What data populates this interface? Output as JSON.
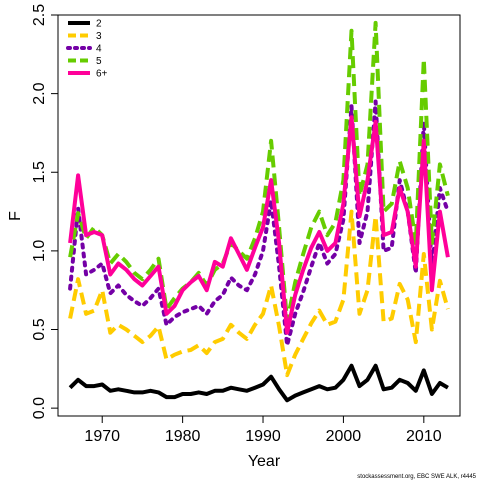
{
  "chart_data": {
    "type": "line",
    "xlabel": "Year",
    "ylabel": "F",
    "xlim": [
      1964.5,
      2014.5
    ],
    "ylim": [
      -0.05,
      2.5
    ],
    "xticks": [
      1970,
      1980,
      1990,
      2000,
      2010
    ],
    "yticks": [
      0.0,
      0.5,
      1.0,
      1.5,
      2.0,
      2.5
    ],
    "ytick_labels": [
      "0.0",
      "0.5",
      "1.0",
      "1.5",
      "2.0",
      "2.5"
    ],
    "grid": false,
    "legend_position": "top-left",
    "credit": "stockassessment.org, EBC SWE ALK, r4445",
    "x": [
      1966,
      1967,
      1968,
      1969,
      1970,
      1971,
      1972,
      1973,
      1974,
      1975,
      1976,
      1977,
      1978,
      1979,
      1980,
      1981,
      1982,
      1983,
      1984,
      1985,
      1986,
      1987,
      1988,
      1989,
      1990,
      1991,
      1992,
      1993,
      1994,
      1995,
      1996,
      1997,
      1998,
      1999,
      2000,
      2001,
      2002,
      2003,
      2004,
      2005,
      2006,
      2007,
      2008,
      2009,
      2010,
      2011,
      2012,
      2013
    ],
    "series": [
      {
        "name": "2",
        "color": "#000000",
        "style": "solid",
        "values": [
          0.13,
          0.18,
          0.14,
          0.14,
          0.15,
          0.11,
          0.12,
          0.11,
          0.1,
          0.1,
          0.11,
          0.1,
          0.07,
          0.07,
          0.09,
          0.09,
          0.1,
          0.09,
          0.11,
          0.11,
          0.13,
          0.12,
          0.11,
          0.13,
          0.15,
          0.2,
          0.12,
          0.05,
          0.08,
          0.1,
          0.12,
          0.14,
          0.12,
          0.13,
          0.18,
          0.27,
          0.14,
          0.18,
          0.27,
          0.12,
          0.13,
          0.18,
          0.16,
          0.11,
          0.24,
          0.09,
          0.16,
          0.13
        ]
      },
      {
        "name": "3",
        "color": "#FFCC00",
        "style": "dashed",
        "values": [
          0.57,
          0.82,
          0.6,
          0.62,
          0.75,
          0.48,
          0.53,
          0.5,
          0.46,
          0.42,
          0.46,
          0.52,
          0.31,
          0.34,
          0.36,
          0.37,
          0.4,
          0.35,
          0.42,
          0.44,
          0.53,
          0.48,
          0.44,
          0.53,
          0.6,
          0.78,
          0.52,
          0.21,
          0.34,
          0.44,
          0.54,
          0.62,
          0.53,
          0.55,
          0.69,
          1.25,
          0.6,
          0.75,
          1.22,
          0.55,
          0.57,
          0.79,
          0.69,
          0.42,
          0.98,
          0.5,
          0.81,
          0.63
        ]
      },
      {
        "name": "4",
        "color": "#7400A6",
        "style": "dotted",
        "values": [
          0.76,
          1.27,
          0.85,
          0.88,
          0.92,
          0.73,
          0.78,
          0.72,
          0.68,
          0.65,
          0.7,
          0.76,
          0.53,
          0.58,
          0.61,
          0.63,
          0.65,
          0.6,
          0.68,
          0.72,
          0.83,
          0.78,
          0.75,
          0.85,
          1.0,
          1.32,
          0.9,
          0.4,
          0.6,
          0.74,
          0.9,
          1.05,
          0.92,
          0.98,
          1.2,
          1.92,
          1.05,
          1.25,
          1.95,
          1.0,
          1.02,
          1.45,
          1.25,
          0.86,
          1.82,
          0.88,
          1.4,
          1.25
        ]
      },
      {
        "name": "5",
        "color": "#66CC00",
        "style": "dashed",
        "values": [
          0.96,
          1.24,
          1.08,
          1.15,
          1.1,
          0.92,
          0.98,
          0.93,
          0.86,
          0.82,
          0.88,
          0.95,
          0.63,
          0.7,
          0.76,
          0.8,
          0.86,
          0.78,
          0.88,
          0.92,
          1.05,
          1.0,
          0.95,
          1.08,
          1.25,
          1.7,
          1.15,
          0.55,
          0.8,
          0.98,
          1.15,
          1.25,
          1.1,
          1.18,
          1.45,
          2.4,
          1.35,
          1.55,
          2.45,
          1.25,
          1.3,
          1.57,
          1.4,
          1.05,
          2.22,
          1.05,
          1.55,
          1.35
        ]
      },
      {
        "name": "6+",
        "color": "#FF0099",
        "style": "solid",
        "values": [
          1.05,
          1.48,
          1.1,
          1.12,
          1.1,
          0.85,
          0.92,
          0.88,
          0.82,
          0.78,
          0.84,
          0.9,
          0.6,
          0.65,
          0.75,
          0.8,
          0.84,
          0.75,
          0.93,
          0.9,
          1.08,
          0.98,
          0.88,
          1.02,
          1.15,
          1.45,
          1.05,
          0.48,
          0.72,
          0.88,
          1.02,
          1.12,
          1.0,
          1.05,
          1.3,
          1.85,
          1.22,
          1.45,
          1.82,
          1.1,
          1.12,
          1.4,
          1.25,
          0.9,
          1.7,
          0.75,
          1.25,
          0.96
        ]
      }
    ]
  }
}
